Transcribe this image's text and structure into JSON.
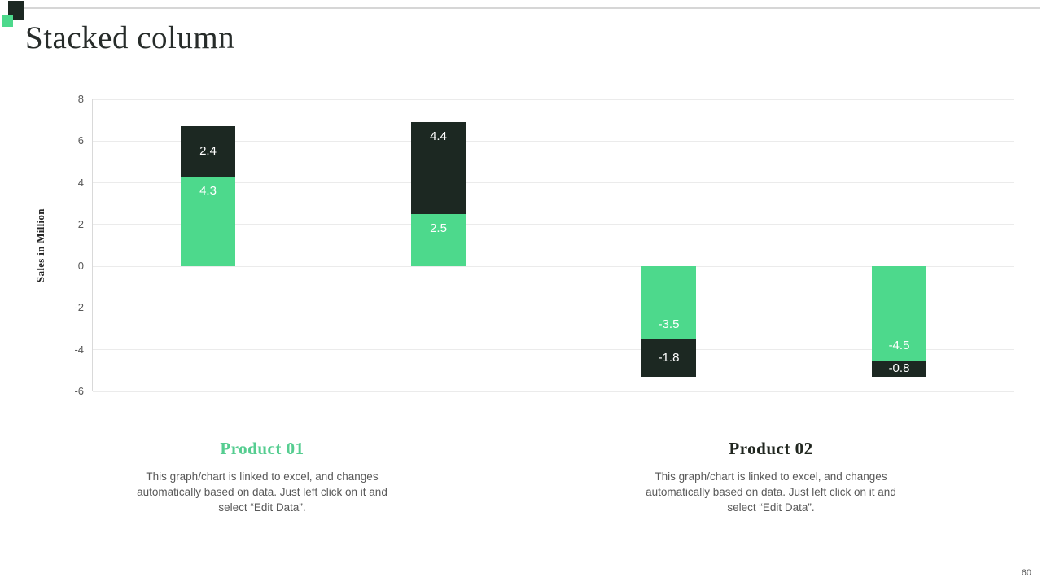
{
  "logo": {
    "dark_color": "#1c2822",
    "accent_color": "#4dd98c"
  },
  "header": {
    "title": "Stacked column"
  },
  "chart_data": {
    "type": "bar",
    "stacked": true,
    "title": "",
    "xlabel": "",
    "ylabel": "Sales in Million",
    "ylim": [
      -6,
      8
    ],
    "yticks": [
      8,
      6,
      4,
      2,
      0,
      -2,
      -4,
      -6
    ],
    "grid": true,
    "legend_position": "none",
    "data_labels": true,
    "data_label_color": "#ffffff",
    "categories": [
      "",
      "",
      "",
      ""
    ],
    "series": [
      {
        "name": "Product 01",
        "color": "#4dd98c",
        "values": [
          4.3,
          2.5,
          -3.5,
          -4.5
        ]
      },
      {
        "name": "Product 02",
        "color": "#1c2822",
        "values": [
          2.4,
          4.4,
          -1.8,
          -0.8
        ]
      }
    ],
    "axis": {
      "tick_label_color": "#595959",
      "grid_color": "#ebebeb",
      "axis_line_color": "#d9d9d9"
    }
  },
  "footnotes": [
    {
      "title": "Product 01",
      "title_color": "#55cd90",
      "description": "This graph/chart is linked to excel, and changes automatically based on data. Just left click on it and select “Edit Data”."
    },
    {
      "title": "Product 02",
      "title_color": "#20261f",
      "description": "This graph/chart is linked to excel, and changes automatically based on data. Just left click on it and select “Edit Data”."
    }
  ],
  "footer": {
    "page_number": "60"
  }
}
